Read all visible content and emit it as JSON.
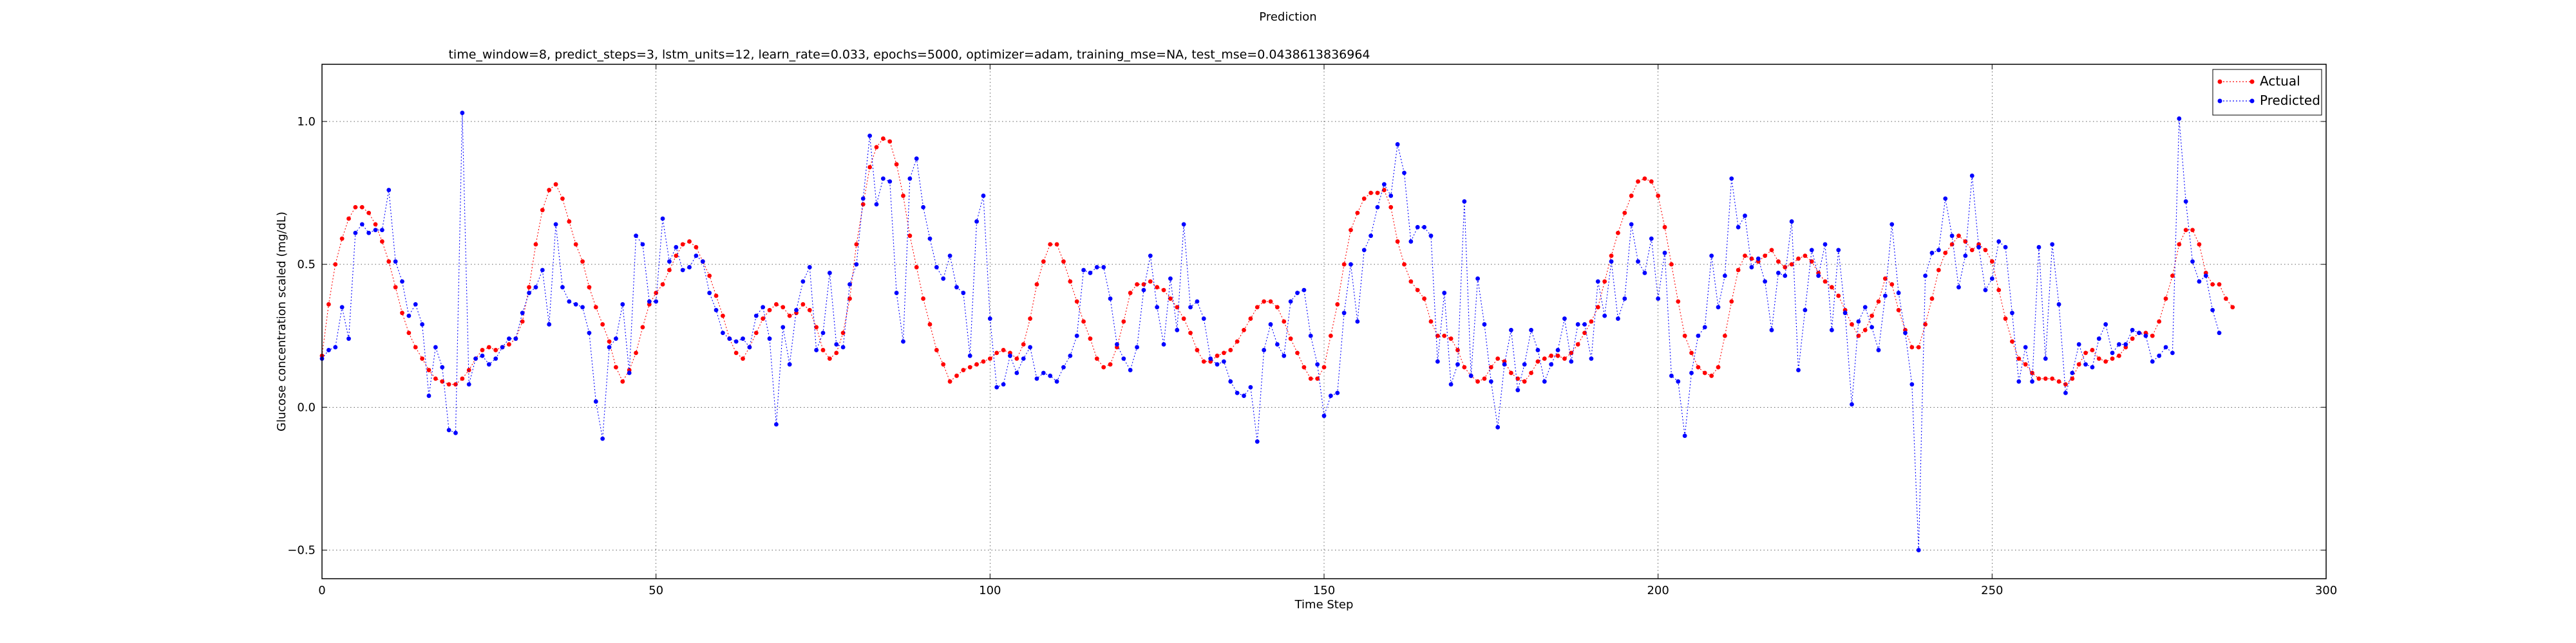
{
  "chart_data": {
    "type": "line",
    "suptitle": "Prediction",
    "title": "time_window=8, predict_steps=3, lstm_units=12, learn_rate=0.033, epochs=5000, optimizer=adam, training_mse=NA, test_mse=0.0438613836964",
    "xlabel": "Time Step",
    "ylabel": "Glucose concentration scaled (mg/dL)",
    "xlim": [
      0,
      300
    ],
    "ylim": [
      -0.6,
      1.2
    ],
    "xticks": [
      0,
      50,
      100,
      150,
      200,
      250,
      300
    ],
    "yticks": [
      -0.5,
      0.0,
      0.5,
      1.0
    ],
    "ytick_labels": [
      "−0.5",
      "0.0",
      "0.5",
      "1.0"
    ],
    "grid": true,
    "legend_position": "top-right",
    "colors": {
      "actual": "#ff0000",
      "predicted": "#0000ff"
    },
    "series": [
      {
        "name": "Actual",
        "color": "#ff0000",
        "marker": "dot",
        "linestyle": "dotted",
        "values": [
          0.18,
          0.36,
          0.5,
          0.59,
          0.66,
          0.7,
          0.7,
          0.68,
          0.64,
          0.58,
          0.51,
          0.42,
          0.33,
          0.26,
          0.21,
          0.17,
          0.13,
          0.1,
          0.09,
          0.08,
          0.08,
          0.1,
          0.13,
          0.17,
          0.2,
          0.21,
          0.2,
          0.21,
          0.22,
          0.24,
          0.3,
          0.42,
          0.57,
          0.69,
          0.76,
          0.78,
          0.73,
          0.65,
          0.57,
          0.51,
          0.42,
          0.35,
          0.29,
          0.23,
          0.14,
          0.09,
          0.13,
          0.19,
          0.28,
          0.36,
          0.4,
          0.43,
          0.48,
          0.53,
          0.57,
          0.58,
          0.56,
          0.51,
          0.46,
          0.39,
          0.32,
          0.24,
          0.19,
          0.17,
          0.21,
          0.26,
          0.31,
          0.34,
          0.36,
          0.35,
          0.32,
          0.33,
          0.36,
          0.34,
          0.28,
          0.2,
          0.17,
          0.19,
          0.26,
          0.38,
          0.57,
          0.71,
          0.84,
          0.91,
          0.94,
          0.93,
          0.85,
          0.74,
          0.6,
          0.49,
          0.38,
          0.29,
          0.2,
          0.15,
          0.09,
          0.11,
          0.13,
          0.14,
          0.15,
          0.16,
          0.17,
          0.19,
          0.2,
          0.19,
          0.17,
          0.22,
          0.31,
          0.43,
          0.51,
          0.57,
          0.57,
          0.51,
          0.44,
          0.37,
          0.3,
          0.24,
          0.17,
          0.14,
          0.15,
          0.21,
          0.3,
          0.4,
          0.43,
          0.43,
          0.44,
          0.42,
          0.41,
          0.38,
          0.35,
          0.31,
          0.26,
          0.2,
          0.16,
          0.16,
          0.18,
          0.19,
          0.2,
          0.23,
          0.27,
          0.31,
          0.35,
          0.37,
          0.37,
          0.35,
          0.3,
          0.24,
          0.19,
          0.14,
          0.1,
          0.1,
          0.14,
          0.25,
          0.36,
          0.5,
          0.62,
          0.68,
          0.73,
          0.75,
          0.75,
          0.76,
          0.7,
          0.58,
          0.5,
          0.44,
          0.41,
          0.38,
          0.3,
          0.25,
          0.25,
          0.24,
          0.2,
          0.14,
          0.11,
          0.09,
          0.1,
          0.14,
          0.17,
          0.16,
          0.12,
          0.1,
          0.09,
          0.12,
          0.16,
          0.17,
          0.18,
          0.18,
          0.17,
          0.19,
          0.22,
          0.26,
          0.3,
          0.35,
          0.44,
          0.53,
          0.61,
          0.68,
          0.74,
          0.79,
          0.8,
          0.79,
          0.74,
          0.63,
          0.5,
          0.37,
          0.25,
          0.19,
          0.14,
          0.12,
          0.11,
          0.14,
          0.25,
          0.37,
          0.48,
          0.53,
          0.52,
          0.51,
          0.53,
          0.55,
          0.51,
          0.49,
          0.5,
          0.52,
          0.53,
          0.51,
          0.47,
          0.44,
          0.42,
          0.39,
          0.34,
          0.29,
          0.25,
          0.27,
          0.32,
          0.37,
          0.45,
          0.43,
          0.34,
          0.27,
          0.21,
          0.21,
          0.29,
          0.38,
          0.48,
          0.54,
          0.57,
          0.6,
          0.58,
          0.55,
          0.57,
          0.55,
          0.51,
          0.41,
          0.31,
          0.23,
          0.17,
          0.15,
          0.12,
          0.1,
          0.1,
          0.1,
          0.09,
          0.08,
          0.1,
          0.15,
          0.19,
          0.2,
          0.17,
          0.16,
          0.17,
          0.18,
          0.21,
          0.24,
          0.26,
          0.26,
          0.25,
          0.3,
          0.38,
          0.46,
          0.57,
          0.62,
          0.62,
          0.57,
          0.47,
          0.43,
          0.43,
          0.38,
          0.35
        ]
      },
      {
        "name": "Predicted",
        "color": "#0000ff",
        "marker": "dot",
        "linestyle": "dotted",
        "values": [
          0.17,
          0.2,
          0.21,
          0.35,
          0.24,
          0.61,
          0.64,
          0.61,
          0.62,
          0.62,
          0.76,
          0.51,
          0.44,
          0.32,
          0.36,
          0.29,
          0.04,
          0.21,
          0.14,
          -0.08,
          -0.09,
          1.03,
          0.08,
          0.17,
          0.18,
          0.15,
          0.17,
          0.21,
          0.24,
          0.24,
          0.33,
          0.4,
          0.42,
          0.48,
          0.29,
          0.64,
          0.42,
          0.37,
          0.36,
          0.35,
          0.26,
          0.02,
          -0.11,
          0.21,
          0.24,
          0.36,
          0.12,
          0.6,
          0.57,
          0.37,
          0.37,
          0.66,
          0.51,
          0.56,
          0.48,
          0.49,
          0.53,
          0.51,
          0.4,
          0.34,
          0.26,
          0.24,
          0.23,
          0.24,
          0.21,
          0.32,
          0.35,
          0.24,
          -0.06,
          0.28,
          0.15,
          0.34,
          0.44,
          0.49,
          0.2,
          0.26,
          0.47,
          0.22,
          0.21,
          0.43,
          0.5,
          0.73,
          0.95,
          0.71,
          0.8,
          0.79,
          0.4,
          0.23,
          0.8,
          0.87,
          0.7,
          0.59,
          0.49,
          0.45,
          0.53,
          0.42,
          0.4,
          0.18,
          0.65,
          0.74,
          0.31,
          0.07,
          0.08,
          0.18,
          0.12,
          0.17,
          0.21,
          0.1,
          0.12,
          0.11,
          0.09,
          0.14,
          0.18,
          0.25,
          0.48,
          0.47,
          0.49,
          0.49,
          0.38,
          0.22,
          0.17,
          0.13,
          0.21,
          0.41,
          0.53,
          0.35,
          0.22,
          0.45,
          0.27,
          0.64,
          0.35,
          0.37,
          0.31,
          0.17,
          0.15,
          0.16,
          0.09,
          0.05,
          0.04,
          0.07,
          -0.12,
          0.2,
          0.29,
          0.22,
          0.18,
          0.37,
          0.4,
          0.41,
          0.25,
          0.15,
          -0.03,
          0.04,
          0.05,
          0.33,
          0.5,
          0.3,
          0.55,
          0.6,
          0.7,
          0.78,
          0.74,
          0.92,
          0.82,
          0.58,
          0.63,
          0.63,
          0.6,
          0.16,
          0.4,
          0.08,
          0.15,
          0.72,
          0.11,
          0.45,
          0.29,
          0.09,
          -0.07,
          0.15,
          0.27,
          0.06,
          0.15,
          0.27,
          0.2,
          0.09,
          0.15,
          0.2,
          0.31,
          0.16,
          0.29,
          0.29,
          0.17,
          0.44,
          0.32,
          0.51,
          0.31,
          0.38,
          0.64,
          0.51,
          0.47,
          0.59,
          0.38,
          0.54,
          0.11,
          0.09,
          -0.1,
          0.12,
          0.25,
          0.28,
          0.53,
          0.35,
          0.46,
          0.8,
          0.63,
          0.67,
          0.49,
          0.52,
          0.44,
          0.27,
          0.47,
          0.46,
          0.65,
          0.13,
          0.34,
          0.55,
          0.46,
          0.57,
          0.27,
          0.55,
          0.33,
          0.01,
          0.3,
          0.35,
          0.28,
          0.2,
          0.39,
          0.64,
          0.4,
          0.26,
          0.08,
          -0.5,
          0.46,
          0.54,
          0.55,
          0.73,
          0.6,
          0.42,
          0.53,
          0.81,
          0.56,
          0.41,
          0.45,
          0.58,
          0.56,
          0.33,
          0.09,
          0.21,
          0.09,
          0.56,
          0.17,
          0.57,
          0.36,
          0.05,
          0.12,
          0.22,
          0.15,
          0.14,
          0.24,
          0.29,
          0.19,
          0.22,
          0.22,
          0.27,
          0.26,
          0.25,
          0.16,
          0.18,
          0.21,
          0.19,
          1.01,
          0.72,
          0.51,
          0.44,
          0.46,
          0.34,
          0.26
        ]
      }
    ]
  }
}
